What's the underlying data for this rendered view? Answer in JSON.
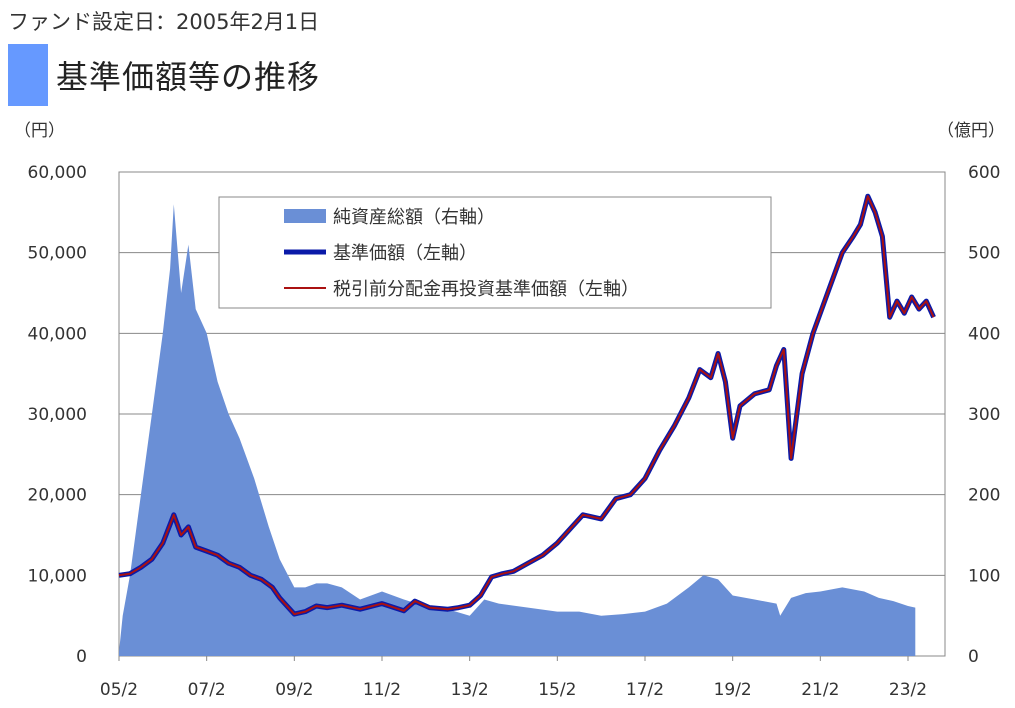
{
  "header": {
    "setup_date": "ファンド設定日：2005年2月1日",
    "title": "基準価額等の推移"
  },
  "chart_data": {
    "type": "line",
    "title": "基準価額等の推移",
    "left_unit": "（円）",
    "right_unit": "（億円）",
    "x_ticks": [
      "05/2",
      "07/2",
      "09/2",
      "11/2",
      "13/2",
      "15/2",
      "17/2",
      "19/2",
      "21/2",
      "23/2"
    ],
    "x_range": [
      "2005-02",
      "2023-02"
    ],
    "y_left": {
      "min": 0,
      "max": 60000,
      "ticks": [
        "0",
        "10,000",
        "20,000",
        "30,000",
        "40,000",
        "50,000",
        "60,000"
      ]
    },
    "y_right": {
      "min": 0,
      "max": 600,
      "ticks": [
        "0",
        "100",
        "200",
        "300",
        "400",
        "500",
        "600"
      ]
    },
    "grid": true,
    "legend_position": "top-center",
    "series": [
      {
        "name": "純資産総額（右軸）",
        "type": "area",
        "axis": "right",
        "color": "#6a8fd6",
        "points": [
          [
            "2005-02",
            5
          ],
          [
            "2005-03",
            50
          ],
          [
            "2005-05",
            100
          ],
          [
            "2005-08",
            200
          ],
          [
            "2005-11",
            300
          ],
          [
            "2006-02",
            400
          ],
          [
            "2006-04",
            480
          ],
          [
            "2006-05",
            560
          ],
          [
            "2006-07",
            450
          ],
          [
            "2006-09",
            510
          ],
          [
            "2006-11",
            430
          ],
          [
            "2007-02",
            400
          ],
          [
            "2007-05",
            340
          ],
          [
            "2007-08",
            300
          ],
          [
            "2007-11",
            270
          ],
          [
            "2008-03",
            220
          ],
          [
            "2008-07",
            160
          ],
          [
            "2008-10",
            120
          ],
          [
            "2009-02",
            85
          ],
          [
            "2009-05",
            85
          ],
          [
            "2009-08",
            90
          ],
          [
            "2009-11",
            90
          ],
          [
            "2010-03",
            85
          ],
          [
            "2010-08",
            70
          ],
          [
            "2011-02",
            80
          ],
          [
            "2011-08",
            70
          ],
          [
            "2012-03",
            60
          ],
          [
            "2012-08",
            58
          ],
          [
            "2013-02",
            50
          ],
          [
            "2013-06",
            70
          ],
          [
            "2013-10",
            65
          ],
          [
            "2014-06",
            60
          ],
          [
            "2015-02",
            55
          ],
          [
            "2015-08",
            55
          ],
          [
            "2016-02",
            50
          ],
          [
            "2016-08",
            52
          ],
          [
            "2017-02",
            55
          ],
          [
            "2017-08",
            65
          ],
          [
            "2018-02",
            85
          ],
          [
            "2018-06",
            100
          ],
          [
            "2018-10",
            95
          ],
          [
            "2019-02",
            75
          ],
          [
            "2019-08",
            70
          ],
          [
            "2020-02",
            65
          ],
          [
            "2020-03",
            50
          ],
          [
            "2020-06",
            72
          ],
          [
            "2020-10",
            78
          ],
          [
            "2021-02",
            80
          ],
          [
            "2021-08",
            85
          ],
          [
            "2022-02",
            80
          ],
          [
            "2022-06",
            72
          ],
          [
            "2022-10",
            68
          ],
          [
            "2023-02",
            62
          ],
          [
            "2023-04",
            60
          ]
        ]
      },
      {
        "name": "基準価額（左軸）",
        "type": "line",
        "axis": "left",
        "color": "#0a1aa8",
        "points": [
          [
            "2005-02",
            10000
          ],
          [
            "2005-05",
            10200
          ],
          [
            "2005-08",
            11000
          ],
          [
            "2005-11",
            12000
          ],
          [
            "2006-02",
            14000
          ],
          [
            "2006-05",
            17500
          ],
          [
            "2006-07",
            15000
          ],
          [
            "2006-09",
            16000
          ],
          [
            "2006-11",
            13500
          ],
          [
            "2007-02",
            13000
          ],
          [
            "2007-05",
            12500
          ],
          [
            "2007-08",
            11500
          ],
          [
            "2007-11",
            11000
          ],
          [
            "2008-02",
            10000
          ],
          [
            "2008-05",
            9500
          ],
          [
            "2008-08",
            8500
          ],
          [
            "2008-10",
            7200
          ],
          [
            "2009-02",
            5200
          ],
          [
            "2009-05",
            5500
          ],
          [
            "2009-08",
            6200
          ],
          [
            "2009-11",
            6000
          ],
          [
            "2010-03",
            6300
          ],
          [
            "2010-08",
            5800
          ],
          [
            "2011-02",
            6500
          ],
          [
            "2011-08",
            5600
          ],
          [
            "2011-11",
            6800
          ],
          [
            "2012-03",
            6000
          ],
          [
            "2012-08",
            5800
          ],
          [
            "2012-11",
            6000
          ],
          [
            "2013-02",
            6300
          ],
          [
            "2013-05",
            7500
          ],
          [
            "2013-08",
            9800
          ],
          [
            "2013-11",
            10200
          ],
          [
            "2014-02",
            10500
          ],
          [
            "2014-06",
            11500
          ],
          [
            "2014-10",
            12500
          ],
          [
            "2015-02",
            14000
          ],
          [
            "2015-06",
            16000
          ],
          [
            "2015-09",
            17500
          ],
          [
            "2016-02",
            17000
          ],
          [
            "2016-06",
            19500
          ],
          [
            "2016-10",
            20000
          ],
          [
            "2017-02",
            22000
          ],
          [
            "2017-06",
            25500
          ],
          [
            "2017-10",
            28500
          ],
          [
            "2018-02",
            32000
          ],
          [
            "2018-05",
            35500
          ],
          [
            "2018-08",
            34500
          ],
          [
            "2018-10",
            37500
          ],
          [
            "2018-12",
            34000
          ],
          [
            "2019-02",
            27000
          ],
          [
            "2019-04",
            31000
          ],
          [
            "2019-08",
            32500
          ],
          [
            "2019-12",
            33000
          ],
          [
            "2020-02",
            36000
          ],
          [
            "2020-04",
            38000
          ],
          [
            "2020-06",
            24500
          ],
          [
            "2020-09",
            35000
          ],
          [
            "2020-12",
            40000
          ],
          [
            "2021-04",
            45000
          ],
          [
            "2021-08",
            50000
          ],
          [
            "2021-11",
            52000
          ],
          [
            "2022-01",
            53500
          ],
          [
            "2022-03",
            57000
          ],
          [
            "2022-05",
            55000
          ],
          [
            "2022-07",
            52000
          ],
          [
            "2022-09",
            42000
          ],
          [
            "2022-11",
            44000
          ],
          [
            "2023-01",
            42500
          ],
          [
            "2023-03",
            44500
          ],
          [
            "2023-05",
            43000
          ],
          [
            "2023-07",
            44000
          ],
          [
            "2023-09",
            42000
          ]
        ]
      },
      {
        "name": "税引前分配金再投資基準価額（左軸）",
        "type": "line",
        "axis": "left",
        "color": "#aa1111",
        "points": [
          [
            "2005-02",
            10000
          ],
          [
            "2005-05",
            10200
          ],
          [
            "2005-08",
            11000
          ],
          [
            "2005-11",
            12000
          ],
          [
            "2006-02",
            14000
          ],
          [
            "2006-05",
            17500
          ],
          [
            "2006-07",
            15000
          ],
          [
            "2006-09",
            16000
          ],
          [
            "2006-11",
            13500
          ],
          [
            "2007-02",
            13000
          ],
          [
            "2007-05",
            12500
          ],
          [
            "2007-08",
            11500
          ],
          [
            "2007-11",
            11000
          ],
          [
            "2008-02",
            10000
          ],
          [
            "2008-05",
            9500
          ],
          [
            "2008-08",
            8500
          ],
          [
            "2008-10",
            7200
          ],
          [
            "2009-02",
            5200
          ],
          [
            "2009-05",
            5500
          ],
          [
            "2009-08",
            6200
          ],
          [
            "2009-11",
            6000
          ],
          [
            "2010-03",
            6300
          ],
          [
            "2010-08",
            5800
          ],
          [
            "2011-02",
            6500
          ],
          [
            "2011-08",
            5600
          ],
          [
            "2011-11",
            6800
          ],
          [
            "2012-03",
            6000
          ],
          [
            "2012-08",
            5800
          ],
          [
            "2012-11",
            6000
          ],
          [
            "2013-02",
            6300
          ],
          [
            "2013-05",
            7500
          ],
          [
            "2013-08",
            9800
          ],
          [
            "2013-11",
            10200
          ],
          [
            "2014-02",
            10500
          ],
          [
            "2014-06",
            11500
          ],
          [
            "2014-10",
            12500
          ],
          [
            "2015-02",
            14000
          ],
          [
            "2015-06",
            16000
          ],
          [
            "2015-09",
            17500
          ],
          [
            "2016-02",
            17000
          ],
          [
            "2016-06",
            19500
          ],
          [
            "2016-10",
            20000
          ],
          [
            "2017-02",
            22000
          ],
          [
            "2017-06",
            25500
          ],
          [
            "2017-10",
            28500
          ],
          [
            "2018-02",
            32000
          ],
          [
            "2018-05",
            35500
          ],
          [
            "2018-08",
            34500
          ],
          [
            "2018-10",
            37500
          ],
          [
            "2018-12",
            34000
          ],
          [
            "2019-02",
            27000
          ],
          [
            "2019-04",
            31000
          ],
          [
            "2019-08",
            32500
          ],
          [
            "2019-12",
            33000
          ],
          [
            "2020-02",
            36000
          ],
          [
            "2020-04",
            38000
          ],
          [
            "2020-06",
            24500
          ],
          [
            "2020-09",
            35000
          ],
          [
            "2020-12",
            40000
          ],
          [
            "2021-04",
            45000
          ],
          [
            "2021-08",
            50000
          ],
          [
            "2021-11",
            52000
          ],
          [
            "2022-01",
            53500
          ],
          [
            "2022-03",
            57000
          ],
          [
            "2022-05",
            55000
          ],
          [
            "2022-07",
            52000
          ],
          [
            "2022-09",
            42000
          ],
          [
            "2022-11",
            44000
          ],
          [
            "2023-01",
            42500
          ],
          [
            "2023-03",
            44500
          ],
          [
            "2023-05",
            43000
          ],
          [
            "2023-07",
            44000
          ],
          [
            "2023-09",
            42000
          ]
        ]
      }
    ]
  }
}
